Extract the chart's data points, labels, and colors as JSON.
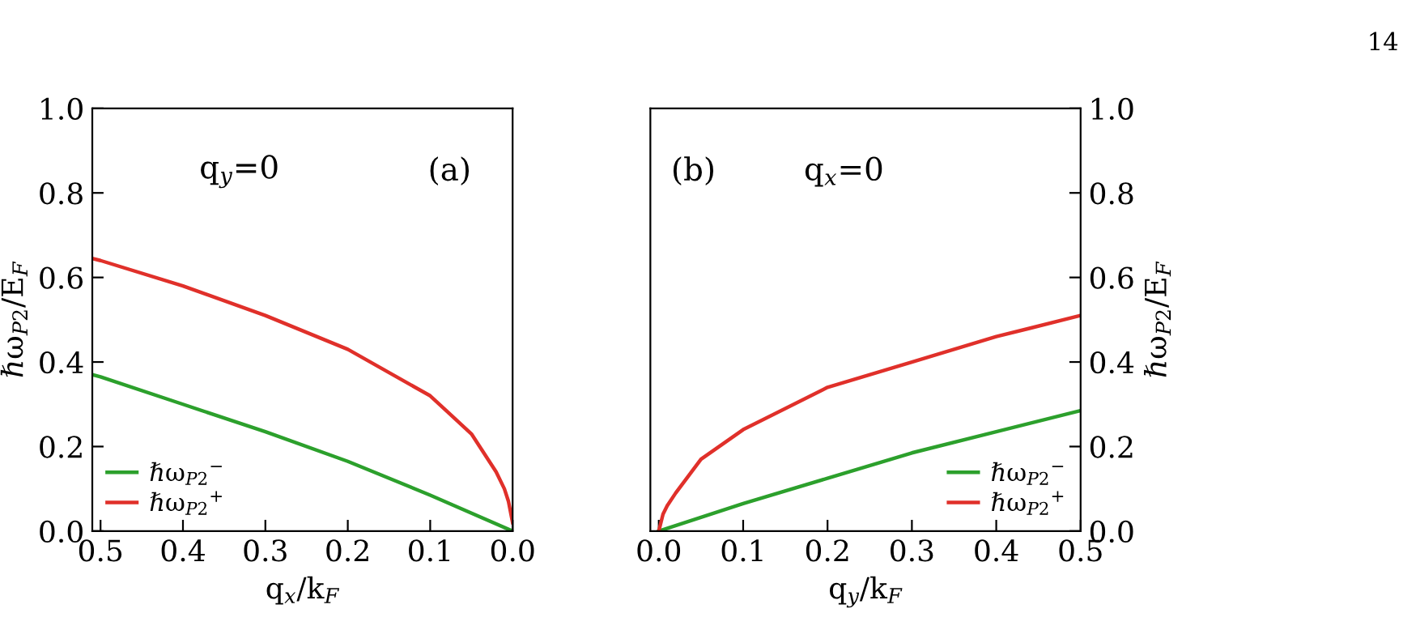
{
  "chart_data": [
    {
      "type": "line",
      "xlabel": "q$_{x}$/k$_{F}$",
      "ylabel": "ℏω$_{P2}$/E$_{F}$",
      "xlim": [
        0.51,
        0.0
      ],
      "ylim": [
        0.0,
        1.0
      ],
      "xticks": [
        {
          "value": 0.5,
          "label": "0.5"
        },
        {
          "value": 0.4,
          "label": "0.4"
        },
        {
          "value": 0.3,
          "label": "0.3"
        },
        {
          "value": 0.2,
          "label": "0.2"
        },
        {
          "value": 0.1,
          "label": "0.1"
        },
        {
          "value": 0.0,
          "label": "0.0"
        }
      ],
      "yticks": [
        {
          "value": 0.0,
          "label": "0.0"
        },
        {
          "value": 0.2,
          "label": "0.2"
        },
        {
          "value": 0.4,
          "label": "0.4"
        },
        {
          "value": 0.6,
          "label": "0.6"
        },
        {
          "value": 0.8,
          "label": "0.8"
        },
        {
          "value": 1.0,
          "label": "1.0"
        }
      ],
      "legend": "bottom left",
      "grid": false,
      "annotations": [
        "q$_{y}$=0",
        "(a)"
      ],
      "series": [
        {
          "name": "ℏω$_{P2}$$^{−}$",
          "color": "#2ca02c",
          "x": [
            0.51,
            0.5,
            0.4,
            0.3,
            0.2,
            0.1,
            0.0
          ],
          "values": [
            0.37,
            0.365,
            0.3,
            0.235,
            0.165,
            0.085,
            0.0
          ]
        },
        {
          "name": "ℏω$_{P2}$$^{+}$",
          "color": "#e0302a",
          "x": [
            0.51,
            0.5,
            0.4,
            0.3,
            0.2,
            0.1,
            0.05,
            0.02,
            0.01,
            0.005,
            0.0
          ],
          "values": [
            0.645,
            0.64,
            0.58,
            0.51,
            0.43,
            0.32,
            0.23,
            0.14,
            0.1,
            0.07,
            0.02
          ]
        }
      ]
    },
    {
      "type": "line",
      "xlabel": "q$_{y}$/k$_{F}$",
      "ylabel": "ℏω$_{P2}$/E$_{F}$",
      "xlim": [
        -0.01,
        0.5
      ],
      "ylim": [
        0.0,
        1.0
      ],
      "xticks": [
        {
          "value": 0.0,
          "label": "0.0"
        },
        {
          "value": 0.1,
          "label": "0.1"
        },
        {
          "value": 0.2,
          "label": "0.2"
        },
        {
          "value": 0.3,
          "label": "0.3"
        },
        {
          "value": 0.4,
          "label": "0.4"
        },
        {
          "value": 0.5,
          "label": "0.5"
        }
      ],
      "yticks": [
        {
          "value": 0.0,
          "label": "0.0"
        },
        {
          "value": 0.2,
          "label": "0.2"
        },
        {
          "value": 0.4,
          "label": "0.4"
        },
        {
          "value": 0.6,
          "label": "0.6"
        },
        {
          "value": 0.8,
          "label": "0.8"
        },
        {
          "value": 1.0,
          "label": "1.0"
        }
      ],
      "legend": "bottom right",
      "grid": false,
      "annotations": [
        "(b)",
        "q$_{x}$=0",
        "14"
      ],
      "series": [
        {
          "name": "ℏω$_{P2}$$^{−}$",
          "color": "#2ca02c",
          "x": [
            0.0,
            0.1,
            0.2,
            0.3,
            0.4,
            0.5
          ],
          "values": [
            0.0,
            0.065,
            0.125,
            0.185,
            0.235,
            0.285
          ]
        },
        {
          "name": "ℏω$_{P2}$$^{+}$",
          "color": "#e0302a",
          "x": [
            0.0,
            0.005,
            0.01,
            0.02,
            0.05,
            0.1,
            0.2,
            0.3,
            0.4,
            0.5
          ],
          "values": [
            0.0,
            0.04,
            0.06,
            0.09,
            0.17,
            0.24,
            0.34,
            0.4,
            0.46,
            0.51
          ]
        }
      ]
    }
  ]
}
